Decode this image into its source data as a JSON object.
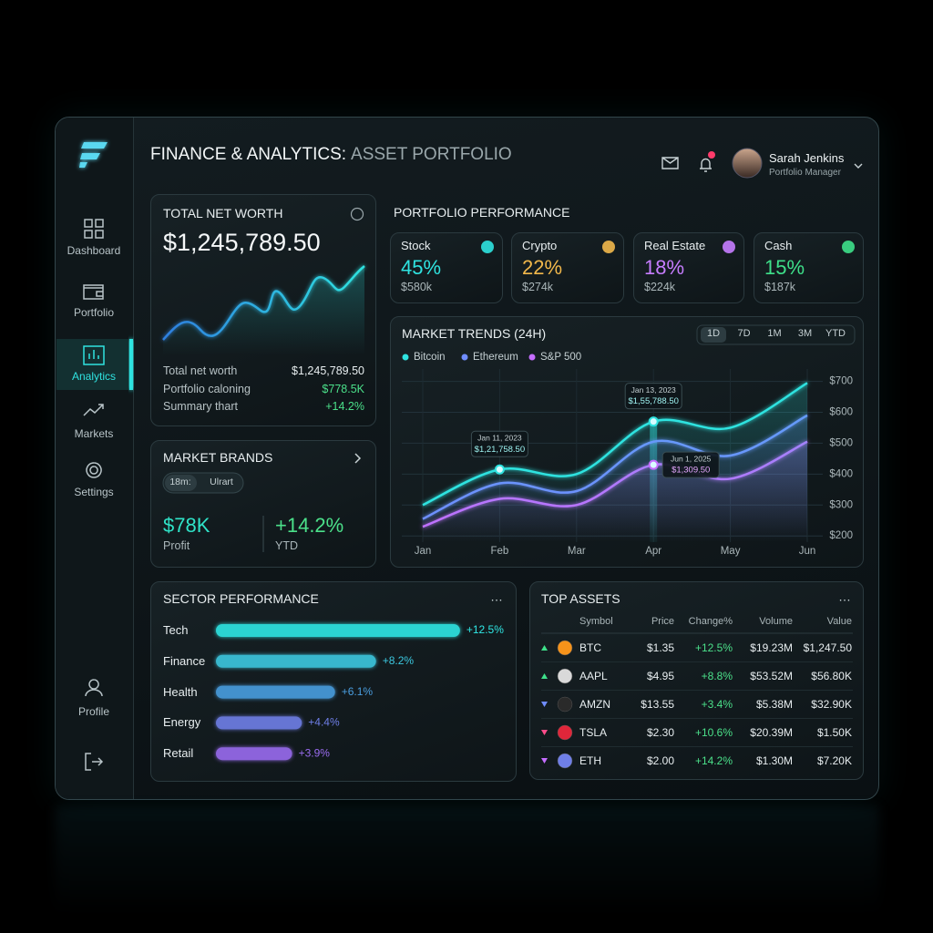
{
  "header": {
    "title": "FINANCE & ANALYTICS:",
    "subtitle": "ASSET PORTFOLIO",
    "user_name": "Sarah Jenkins",
    "user_role": "Portfolio Manager"
  },
  "sidebar": {
    "items": [
      "Dashboard",
      "Portfolio",
      "Analytics",
      "Markets",
      "Settings",
      "Profile"
    ],
    "active": 2
  },
  "net_worth": {
    "title": "TOTAL NET WORTH",
    "value": "$1,245,789.50",
    "rows": [
      [
        "Total net worth",
        "$1,245,789.50"
      ],
      [
        "Portfolio caloning",
        "$778.5K"
      ],
      [
        "Summary thart",
        "+14.2%"
      ]
    ]
  },
  "allocation": {
    "title": "PORTFOLIO PERFORMANCE",
    "cards": [
      {
        "name": "Stock",
        "percent": "45%",
        "amount": "$580k",
        "color": "#2fe3e0"
      },
      {
        "name": "Crypto",
        "percent": "22%",
        "amount": "$274k",
        "color": "#f2b84b"
      },
      {
        "name": "Real Estate",
        "percent": "18%",
        "amount": "$224k",
        "color": "#c77dff"
      },
      {
        "name": "Cash",
        "percent": "15%",
        "amount": "$187k",
        "color": "#3ee08a"
      }
    ]
  },
  "market_brands": {
    "title": "MARKET BRANDS",
    "tabs": [
      "18m:",
      "Ulrart"
    ],
    "stats": [
      {
        "value": "$78K",
        "label": "Profit",
        "color": "#2fe3c8"
      },
      {
        "value": "+14.2%",
        "label": "YTD",
        "color": "#4be08a"
      }
    ]
  },
  "market_trends": {
    "type": "line",
    "title": "MARKET TRENDS (24H)",
    "tabs": [
      "1D",
      "7D",
      "1M",
      "3M",
      "YTD"
    ],
    "active_tab": 0,
    "categories": [
      "Jan",
      "Feb",
      "Mar",
      "Apr",
      "May",
      "Jun"
    ],
    "series": [
      {
        "name": "Bitcoin",
        "color": "#2fe3e0",
        "values": [
          300,
          415,
          400,
          570,
          550,
          695
        ]
      },
      {
        "name": "Ethereum",
        "color": "#6f8cff",
        "values": [
          255,
          370,
          345,
          505,
          460,
          590
        ]
      },
      {
        "name": "S&P 500",
        "color": "#c56dff",
        "values": [
          230,
          320,
          300,
          430,
          385,
          505
        ]
      }
    ],
    "ylim": [
      180,
      740
    ],
    "yticks": [
      {
        "value": 200,
        "label": "$200"
      },
      {
        "value": 300,
        "label": "$300"
      },
      {
        "value": 400,
        "label": "$400"
      },
      {
        "value": 500,
        "label": "$500"
      },
      {
        "value": 600,
        "label": "$600"
      },
      {
        "value": 700,
        "label": "$700"
      }
    ],
    "grid": true,
    "annotations": [
      {
        "date": "Jan 11, 2023",
        "value": "$1,21,758.50"
      },
      {
        "date": "Jan 13, 2023",
        "value": "$1,55,788.50"
      },
      {
        "date": "Jun 1, 2025",
        "value": "$1,309.50"
      }
    ]
  },
  "sector_performance": {
    "type": "bar",
    "title": "SECTOR PERFORMANCE",
    "categories": [
      "Tech",
      "Finance",
      "Health",
      "Energy",
      "Retail"
    ],
    "values": [
      12.5,
      8.2,
      6.1,
      4.4,
      3.9
    ],
    "value_labels": [
      "+12.5%",
      "+8.2%",
      "+6.1%",
      "+4.4%",
      "+3.9%"
    ],
    "colors": [
      "#2fe8e6",
      "#3cc8e0",
      "#4a9ee0",
      "#6f7fe8",
      "#9a6cf0"
    ],
    "xlim": [
      0,
      14
    ]
  },
  "top_assets": {
    "title": "TOP ASSETS",
    "columns": [
      "Symbol",
      "Price",
      "Change%",
      "Volume",
      "Value"
    ],
    "rows": [
      {
        "cells": [
          "BTC",
          "$1.35",
          "+12.5%",
          "$19.23M",
          "$1,247.50"
        ],
        "trend": "up",
        "color": "#f7931a"
      },
      {
        "cells": [
          "AAPL",
          "$4.95",
          "+8.8%",
          "$53.52M",
          "$56.80K"
        ],
        "trend": "up",
        "color": "#d9d9d9"
      },
      {
        "cells": [
          "AMZN",
          "$13.55",
          "+3.4%",
          "$5.38M",
          "$32.90K"
        ],
        "trend": "down",
        "color": "#2a2a2a"
      },
      {
        "cells": [
          "TSLA",
          "$2.30",
          "+10.6%",
          "$20.39M",
          "$1.50K"
        ],
        "trend": "down",
        "color": "#e0263a"
      },
      {
        "cells": [
          "ETH",
          "$2.00",
          "+14.2%",
          "$1.30M",
          "$7.20K"
        ],
        "trend": "down",
        "color": "#6f7fe8"
      }
    ]
  }
}
